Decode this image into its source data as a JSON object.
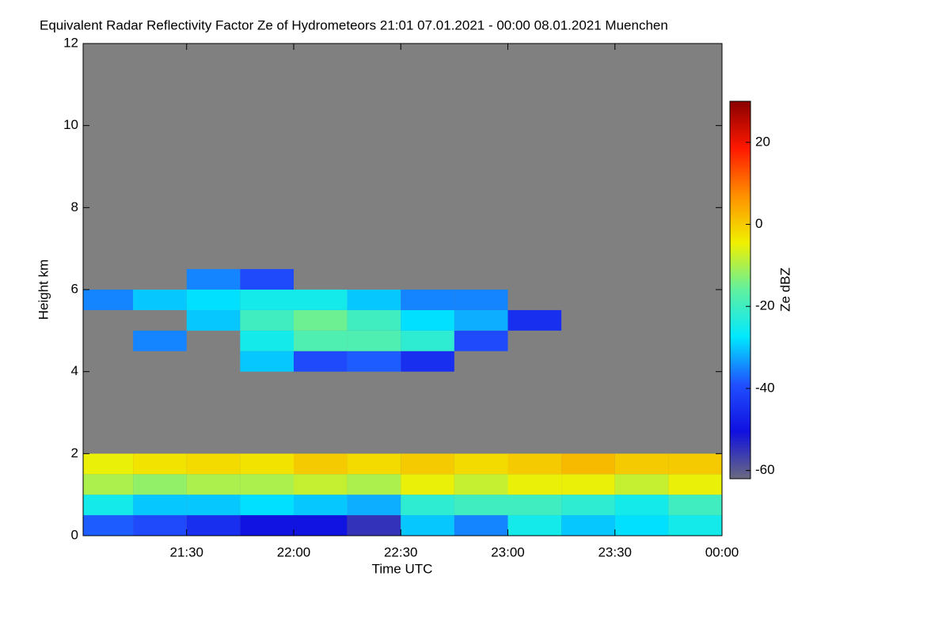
{
  "chart_data": {
    "type": "heatmap",
    "title": "Equivalent Radar Reflectivity Factor Ze of Hydrometeors   21:01 07.01.2021 - 00:00 08.01.2021 Muenchen",
    "x_label": "Time UTC",
    "y_label": "Height km",
    "colorbar_label": "Ze dBZ",
    "background": "#808080",
    "xlim": [
      21.0167,
      24
    ],
    "xticks": [
      {
        "value": 21.5,
        "label": "21:30"
      },
      {
        "value": 22,
        "label": "22:00"
      },
      {
        "value": 22.5,
        "label": "22:30"
      },
      {
        "value": 23,
        "label": "23:00"
      },
      {
        "value": 23.5,
        "label": "23:30"
      },
      {
        "value": 24,
        "label": "00:00"
      }
    ],
    "ylim": [
      0,
      12
    ],
    "yticks": [
      0,
      2,
      4,
      6,
      8,
      10,
      12
    ],
    "zlim": [
      -62,
      30
    ],
    "zticks": [
      -60,
      -40,
      -20,
      0,
      20
    ],
    "colorscale": [
      "#6a6a80",
      "#1010e0",
      "#2050ff",
      "#00e8ff",
      "#60f0a0",
      "#f0f000",
      "#ff9000",
      "#ff1800",
      "#8a0000"
    ],
    "x": [
      21.125,
      21.375,
      21.625,
      21.875,
      22.125,
      22.375,
      22.625,
      22.875,
      23.125,
      23.375,
      23.625,
      23.875
    ],
    "y": [
      0.25,
      0.75,
      1.25,
      1.75,
      2.25,
      2.75,
      3.25,
      3.75,
      4.25,
      4.75,
      5.25,
      5.75,
      6.25
    ],
    "values": [
      [
        -38,
        -40,
        -45,
        -50,
        -50,
        -55,
        -30,
        -35,
        -25,
        -30,
        -28,
        -25
      ],
      [
        -25,
        -30,
        -30,
        -28,
        -30,
        -32,
        -22,
        -20,
        -20,
        -22,
        -25,
        -20
      ],
      [
        -10,
        -12,
        -10,
        -10,
        -8,
        -10,
        -5,
        -8,
        -5,
        -5,
        -8,
        -5
      ],
      [
        -5,
        -3,
        -2,
        -3,
        0,
        -2,
        0,
        -2,
        0,
        2,
        0,
        0
      ],
      [
        null,
        null,
        null,
        null,
        null,
        null,
        null,
        null,
        null,
        null,
        null,
        null
      ],
      [
        null,
        null,
        null,
        null,
        null,
        null,
        null,
        null,
        null,
        null,
        null,
        null
      ],
      [
        null,
        null,
        null,
        null,
        null,
        null,
        null,
        null,
        null,
        null,
        null,
        null
      ],
      [
        null,
        null,
        null,
        null,
        null,
        null,
        null,
        null,
        null,
        null,
        null,
        null
      ],
      [
        null,
        null,
        null,
        -30,
        -40,
        -38,
        -45,
        null,
        null,
        null,
        null,
        null
      ],
      [
        null,
        -35,
        null,
        -25,
        -18,
        -18,
        -22,
        -40,
        null,
        null,
        null,
        null
      ],
      [
        null,
        null,
        -30,
        -20,
        -15,
        -20,
        -28,
        -32,
        -45,
        null,
        null,
        null
      ],
      [
        -35,
        -30,
        -28,
        -25,
        -25,
        -30,
        -35,
        -35,
        null,
        null,
        null,
        null
      ],
      [
        null,
        null,
        -35,
        -40,
        null,
        null,
        null,
        null,
        null,
        null,
        null,
        null
      ]
    ]
  }
}
